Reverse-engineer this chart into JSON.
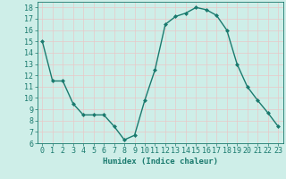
{
  "x": [
    0,
    1,
    2,
    3,
    4,
    5,
    6,
    7,
    8,
    9,
    10,
    11,
    12,
    13,
    14,
    15,
    16,
    17,
    18,
    19,
    20,
    21,
    22,
    23
  ],
  "y": [
    15,
    11.5,
    11.5,
    9.5,
    8.5,
    8.5,
    8.5,
    7.5,
    6.3,
    6.7,
    9.8,
    12.5,
    16.5,
    17.2,
    17.5,
    18.0,
    17.8,
    17.3,
    16.0,
    13.0,
    11.0,
    9.8,
    8.7,
    7.5
  ],
  "line_color": "#1a7a6e",
  "marker": "D",
  "marker_size": 2.0,
  "bg_color": "#ceeee8",
  "grid_color": "#e8c8c8",
  "xlabel": "Humidex (Indice chaleur)",
  "ylim": [
    6,
    18.5
  ],
  "xlim": [
    -0.5,
    23.5
  ],
  "yticks": [
    6,
    7,
    8,
    9,
    10,
    11,
    12,
    13,
    14,
    15,
    16,
    17,
    18
  ],
  "xticks": [
    0,
    1,
    2,
    3,
    4,
    5,
    6,
    7,
    8,
    9,
    10,
    11,
    12,
    13,
    14,
    15,
    16,
    17,
    18,
    19,
    20,
    21,
    22,
    23
  ],
  "xlabel_fontsize": 6.5,
  "tick_fontsize": 6.0,
  "line_width": 1.0
}
